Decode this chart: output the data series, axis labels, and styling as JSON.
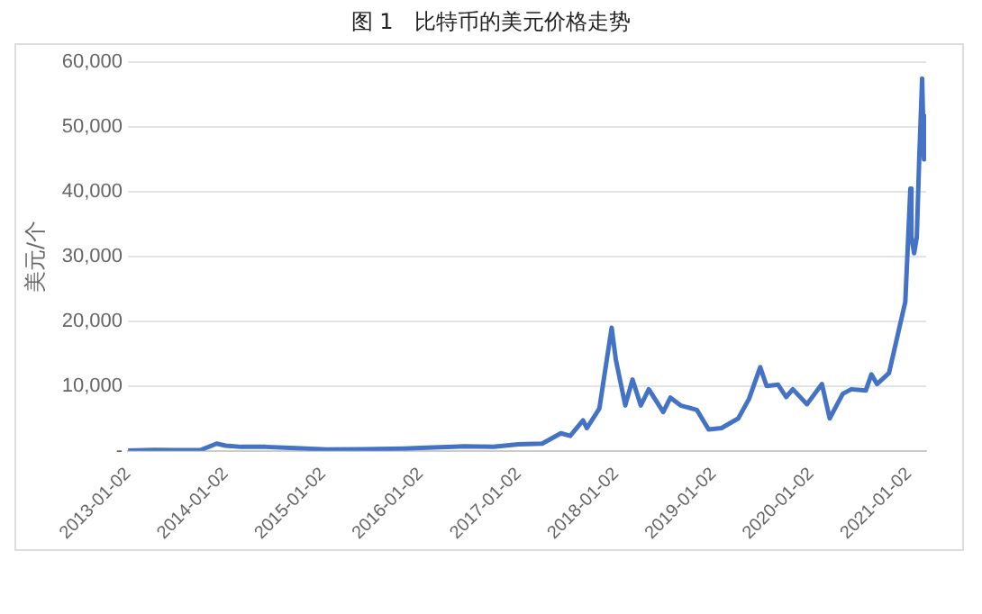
{
  "chart_data": {
    "type": "line",
    "title": "图 1　比特币的美元价格走势",
    "ylabel": "美元/个",
    "grid": "y",
    "legend": false,
    "marker": "none",
    "line_style": "solid",
    "xlim": [
      "2013-01-02",
      "2021-03-08"
    ],
    "xticks": [
      "2013-01-02",
      "2014-01-02",
      "2015-01-02",
      "2016-01-02",
      "2017-01-02",
      "2018-01-02",
      "2019-01-02",
      "2020-01-02",
      "2021-01-02"
    ],
    "ylim": [
      0,
      60000
    ],
    "yticks": [
      {
        "value": 0,
        "label": "-"
      },
      {
        "value": 10000,
        "label": "10,000"
      },
      {
        "value": 20000,
        "label": "20,000"
      },
      {
        "value": 30000,
        "label": "30,000"
      },
      {
        "value": 40000,
        "label": "40,000"
      },
      {
        "value": 50000,
        "label": "50,000"
      },
      {
        "value": 60000,
        "label": "60,000"
      }
    ],
    "series": [
      {
        "color": "#4472c4",
        "x": [
          "2013-01-02",
          "2013-04-10",
          "2013-07-01",
          "2013-10-01",
          "2013-11-30",
          "2014-01-02",
          "2014-03-01",
          "2014-06-01",
          "2014-09-01",
          "2015-01-15",
          "2015-06-01",
          "2015-11-05",
          "2016-01-02",
          "2016-06-15",
          "2016-10-01",
          "2017-01-02",
          "2017-04-01",
          "2017-06-10",
          "2017-07-15",
          "2017-09-01",
          "2017-09-15",
          "2017-11-01",
          "2017-12-17",
          "2018-01-02",
          "2018-02-06",
          "2018-03-05",
          "2018-04-05",
          "2018-05-05",
          "2018-06-28",
          "2018-07-25",
          "2018-09-01",
          "2018-11-01",
          "2018-12-15",
          "2019-02-01",
          "2019-04-05",
          "2019-05-15",
          "2019-06-26",
          "2019-07-20",
          "2019-09-01",
          "2019-10-01",
          "2019-10-26",
          "2019-12-18",
          "2020-02-12",
          "2020-03-12",
          "2020-04-30",
          "2020-06-01",
          "2020-07-25",
          "2020-08-15",
          "2020-09-05",
          "2020-10-20",
          "2020-11-25",
          "2020-12-20",
          "2021-01-08",
          "2021-01-12",
          "2021-01-22",
          "2021-02-01",
          "2021-02-10",
          "2021-02-21",
          "2021-02-28",
          "2021-03-05"
        ],
        "values": [
          13,
          130,
          90,
          130,
          1100,
          800,
          600,
          600,
          450,
          200,
          230,
          350,
          430,
          700,
          620,
          1000,
          1100,
          2700,
          2300,
          4700,
          3500,
          6500,
          19000,
          14000,
          7000,
          11000,
          7000,
          9500,
          6000,
          8200,
          7000,
          6300,
          3300,
          3500,
          5000,
          8000,
          12900,
          10000,
          10200,
          8300,
          9500,
          7200,
          10300,
          5000,
          8800,
          9500,
          9300,
          11800,
          10300,
          12000,
          18500,
          23000,
          40500,
          33000,
          30500,
          33000,
          45000,
          57500,
          45000,
          52000
        ]
      }
    ]
  }
}
